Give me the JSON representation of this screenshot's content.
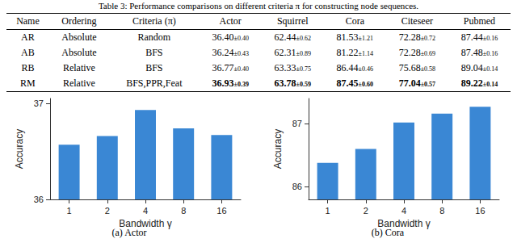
{
  "caption": "Table 3: Performance comparisons on different criteria π for constructing node sequences.",
  "table": {
    "header": [
      "Name",
      "Ordering",
      "Criteria (π)",
      "Actor",
      "Squirrel",
      "Cora",
      "Citeseer",
      "Pubmed"
    ],
    "rows": [
      [
        "AR",
        "Absolute",
        "Random",
        "36.40±0.40",
        "62.44±0.62",
        "81.53±1.21",
        "72.28±0.72",
        "87.44±0.16"
      ],
      [
        "AB",
        "Absolute",
        "BFS",
        "36.24±0.43",
        "62.31±0.89",
        "81.22±1.14",
        "72.28±0.69",
        "87.48±0.16"
      ],
      [
        "RB",
        "Relative",
        "BFS",
        "36.77±0.40",
        "63.33±0.75",
        "86.44±0.46",
        "75.68±0.58",
        "89.04±0.14"
      ],
      [
        "RM",
        "Relative",
        "BFS,PPR,Feat",
        "36.93±0.39",
        "63.78±0.59",
        "87.45±0.60",
        "77.04±0.57",
        "89.22±0.14"
      ]
    ]
  },
  "chart_data": [
    {
      "type": "bar",
      "title": "(a) Actor",
      "xlabel": "Bandwidth γ",
      "ylabel": "Accuracy",
      "categories": [
        "1",
        "2",
        "4",
        "8",
        "16"
      ],
      "values": [
        36.57,
        36.66,
        36.93,
        36.74,
        36.67
      ],
      "color": "#3a87d4",
      "ylim": [
        36,
        37.05
      ],
      "yticks": [
        36,
        37
      ],
      "grid": false
    },
    {
      "type": "bar",
      "title": "(b) Cora",
      "xlabel": "Bandwidth γ",
      "ylabel": "Accuracy",
      "categories": [
        "1",
        "2",
        "4",
        "8",
        "16"
      ],
      "values": [
        86.38,
        86.6,
        87.02,
        87.16,
        87.27
      ],
      "color": "#3a87d4",
      "ylim": [
        85.8,
        87.4
      ],
      "yticks": [
        86,
        87
      ],
      "grid": false
    }
  ]
}
